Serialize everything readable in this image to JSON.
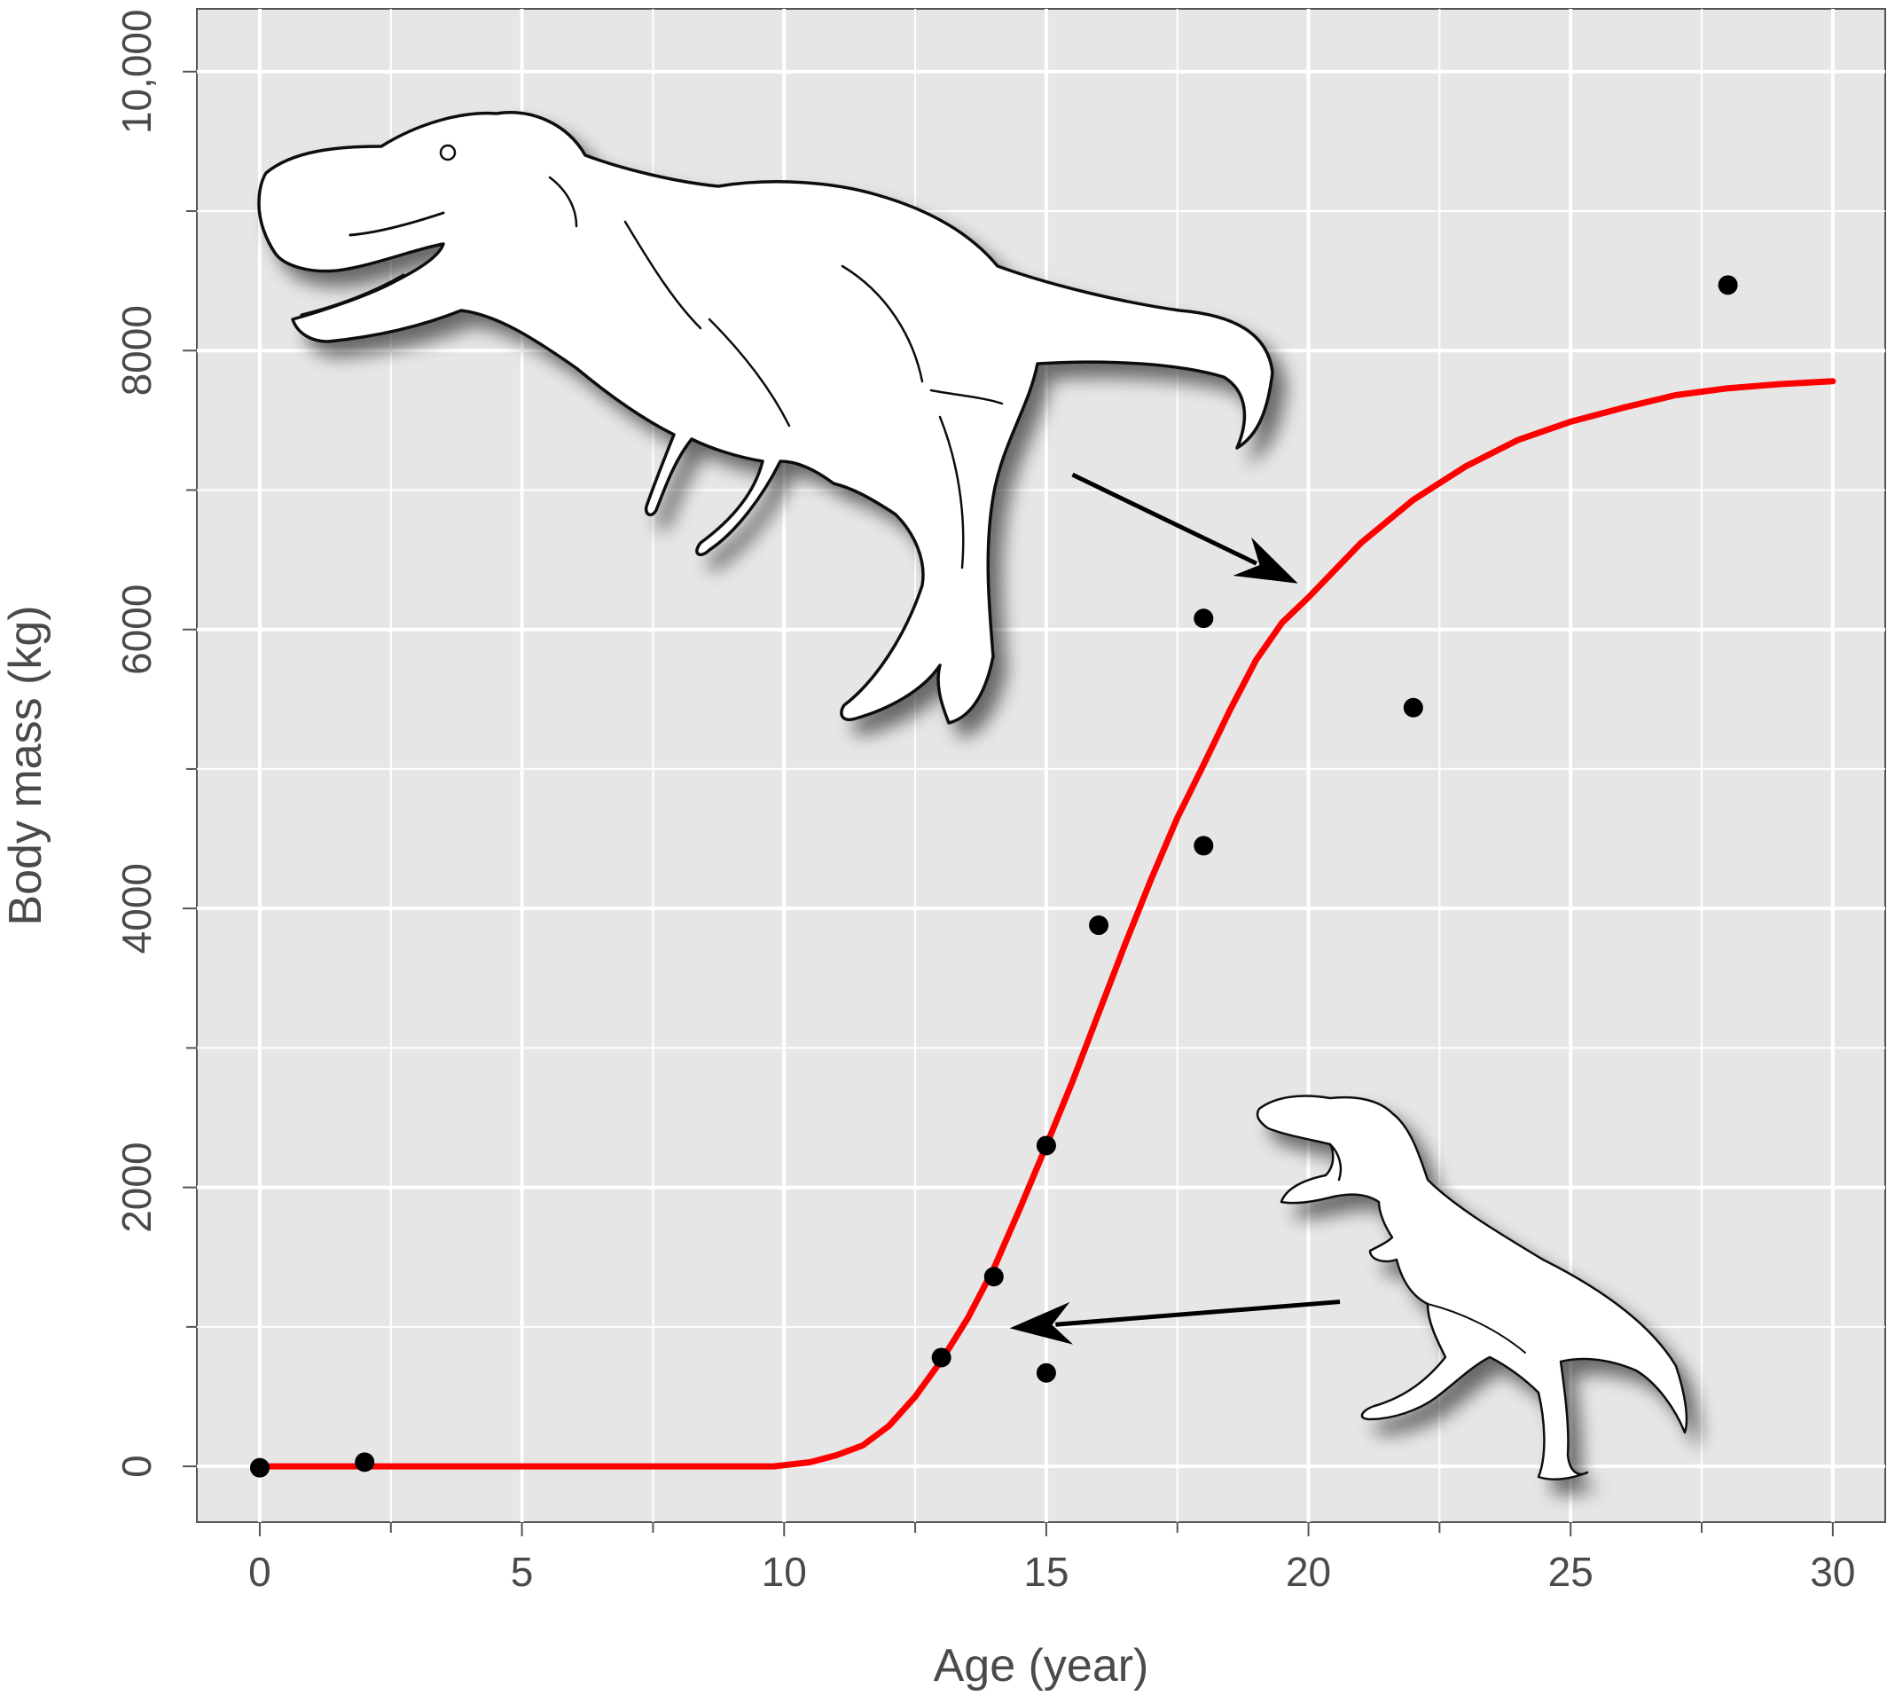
{
  "chart_data": {
    "type": "scatter",
    "xlabel": "Age (year)",
    "ylabel": "Body mass (kg)",
    "xlim": [
      -1.2,
      31
    ],
    "ylim": [
      -400,
      10450
    ],
    "x_ticks": [
      0,
      5,
      10,
      15,
      20,
      25,
      30
    ],
    "x_tick_labels": [
      "0",
      "5",
      "10",
      "15",
      "20",
      "25",
      "30"
    ],
    "y_ticks": [
      0,
      2000,
      4000,
      6000,
      8000,
      10000
    ],
    "y_tick_labels": [
      "0",
      "2000",
      "4000",
      "6000",
      "8000",
      "10,000"
    ],
    "grid": true,
    "background": "#e6e6e6",
    "series": [
      {
        "kind": "points",
        "color": "#000000",
        "points": [
          {
            "x": 0,
            "y": -10
          },
          {
            "x": 2,
            "y": 30
          },
          {
            "x": 13,
            "y": 780
          },
          {
            "x": 14,
            "y": 1360
          },
          {
            "x": 15,
            "y": 670
          },
          {
            "x": 15,
            "y": 2300
          },
          {
            "x": 16,
            "y": 3880
          },
          {
            "x": 18,
            "y": 4450
          },
          {
            "x": 18,
            "y": 6080
          },
          {
            "x": 22,
            "y": 5440
          },
          {
            "x": 28,
            "y": 8470
          }
        ]
      },
      {
        "kind": "line",
        "color": "#ff0000",
        "points": [
          {
            "x": 0,
            "y": 0
          },
          {
            "x": 2,
            "y": 0
          },
          {
            "x": 4,
            "y": 0
          },
          {
            "x": 6,
            "y": 0
          },
          {
            "x": 8,
            "y": 0
          },
          {
            "x": 9.8,
            "y": 0
          },
          {
            "x": 10.5,
            "y": 30
          },
          {
            "x": 11,
            "y": 80
          },
          {
            "x": 11.5,
            "y": 150
          },
          {
            "x": 12,
            "y": 290
          },
          {
            "x": 12.5,
            "y": 500
          },
          {
            "x": 13,
            "y": 760
          },
          {
            "x": 13.5,
            "y": 1060
          },
          {
            "x": 14,
            "y": 1420
          },
          {
            "x": 14.5,
            "y": 1850
          },
          {
            "x": 15,
            "y": 2300
          },
          {
            "x": 15.5,
            "y": 2760
          },
          {
            "x": 16,
            "y": 3250
          },
          {
            "x": 16.5,
            "y": 3740
          },
          {
            "x": 17,
            "y": 4210
          },
          {
            "x": 17.5,
            "y": 4650
          },
          {
            "x": 18,
            "y": 5030
          },
          {
            "x": 18.5,
            "y": 5420
          },
          {
            "x": 19,
            "y": 5780
          },
          {
            "x": 19.5,
            "y": 6050
          },
          {
            "x": 20,
            "y": 6230
          },
          {
            "x": 21,
            "y": 6620
          },
          {
            "x": 22,
            "y": 6930
          },
          {
            "x": 23,
            "y": 7170
          },
          {
            "x": 24,
            "y": 7360
          },
          {
            "x": 25,
            "y": 7490
          },
          {
            "x": 26,
            "y": 7590
          },
          {
            "x": 27,
            "y": 7680
          },
          {
            "x": 28,
            "y": 7730
          },
          {
            "x": 29,
            "y": 7760
          },
          {
            "x": 30,
            "y": 7780
          }
        ]
      }
    ],
    "annotations": [
      {
        "kind": "arrow",
        "from": {
          "x": 15.5,
          "y": 7110
        },
        "to": {
          "x": 19.8,
          "y": 6330
        }
      },
      {
        "kind": "arrow",
        "from": {
          "x": 20.6,
          "y": 1180
        },
        "to": {
          "x": 14.3,
          "y": 990
        }
      },
      {
        "kind": "illustration",
        "name": "adult-tyrannosaurus-illustration"
      },
      {
        "kind": "illustration",
        "name": "juvenile-tyrannosaurus-illustration"
      }
    ]
  }
}
